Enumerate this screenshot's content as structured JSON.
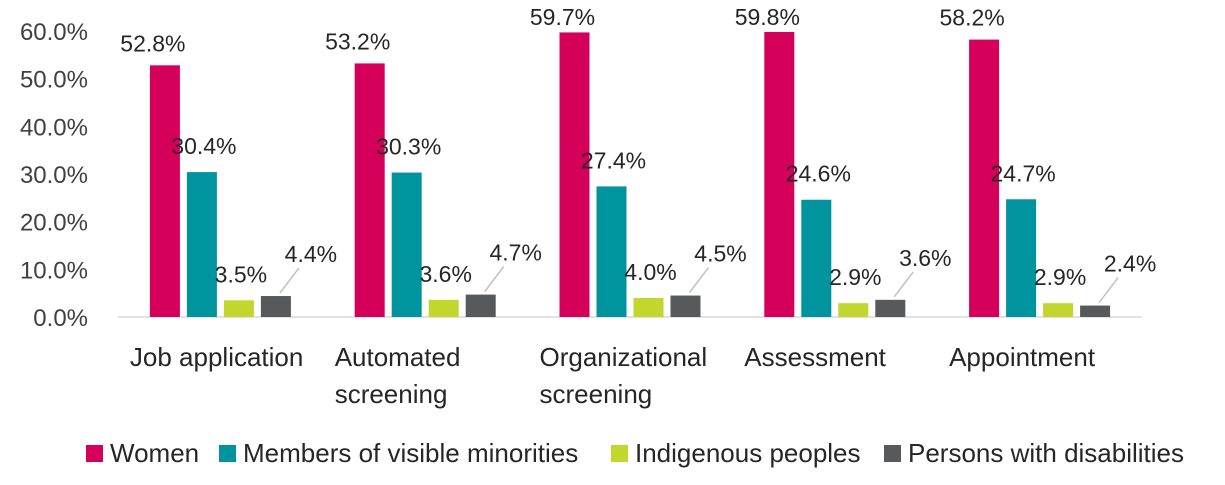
{
  "chart_data": {
    "type": "bar",
    "categories": [
      [
        "Job application"
      ],
      [
        "Automated",
        "screening"
      ],
      [
        "Organizational",
        "screening"
      ],
      [
        "Assessment"
      ],
      [
        "Appointment"
      ]
    ],
    "series": [
      {
        "name": "Women",
        "color": "#D4005A",
        "values": [
          52.8,
          53.2,
          59.7,
          59.8,
          58.2
        ],
        "labels": [
          "52.8%",
          "53.2%",
          "59.7%",
          "59.8%",
          "58.2%"
        ]
      },
      {
        "name": "Members of visible minorities",
        "color": "#00959E",
        "values": [
          30.4,
          30.3,
          27.4,
          24.6,
          24.7
        ],
        "labels": [
          "30.4%",
          "30.3%",
          "27.4%",
          "24.6%",
          "24.7%"
        ]
      },
      {
        "name": "Indigenous peoples",
        "color": "#C2D62E",
        "values": [
          3.5,
          3.6,
          4.0,
          2.9,
          2.9
        ],
        "labels": [
          "3.5%",
          "3.6%",
          "4.0%",
          "2.9%",
          "2.9%"
        ]
      },
      {
        "name": "Persons with disabilities",
        "color": "#58595B",
        "values": [
          4.4,
          4.7,
          4.5,
          3.6,
          2.4
        ],
        "labels": [
          "4.4%",
          "4.7%",
          "4.5%",
          "3.6%",
          "2.4%"
        ]
      }
    ],
    "y_ticks": [
      "0.0%",
      "10.0%",
      "20.0%",
      "30.0%",
      "40.0%",
      "50.0%",
      "60.0%"
    ],
    "ylim": [
      0,
      60
    ],
    "grid": false,
    "legend_position": "bottom"
  }
}
